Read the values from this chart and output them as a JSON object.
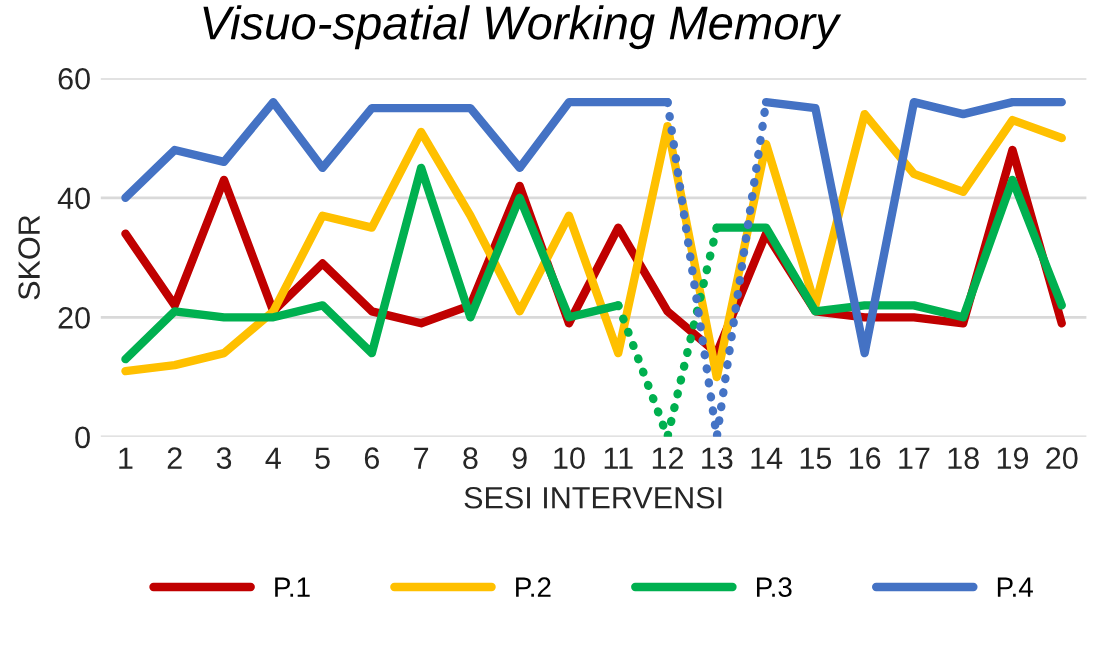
{
  "chart_data": {
    "type": "line",
    "title": "Visuo-spatial Working Memory",
    "xlabel": "SESI INTERVENSI",
    "ylabel": "SKOR",
    "categories": [
      "1",
      "2",
      "3",
      "4",
      "5",
      "6",
      "7",
      "8",
      "9",
      "10",
      "11",
      "12",
      "13",
      "14",
      "15",
      "16",
      "17",
      "18",
      "19",
      "20"
    ],
    "ylim": [
      0,
      60
    ],
    "yticks": [
      0,
      20,
      40,
      60
    ],
    "grid": "y",
    "legend": "bottom",
    "marker": "none",
    "series": [
      {
        "name": "P.1",
        "color": "#c00000",
        "values": [
          34,
          22,
          43,
          21,
          29,
          21,
          19,
          22,
          42,
          19,
          35,
          21,
          14,
          34,
          21,
          20,
          20,
          19,
          48,
          19
        ]
      },
      {
        "name": "P.2",
        "color": "#ffc000",
        "values": [
          11,
          12,
          14,
          21,
          37,
          35,
          51,
          37,
          21,
          37,
          14,
          52,
          10,
          49,
          22,
          54,
          44,
          41,
          53,
          50
        ]
      },
      {
        "name": "P.3",
        "color": "#00b050",
        "values": [
          13,
          21,
          20,
          20,
          22,
          14,
          45,
          20,
          40,
          20,
          22,
          null,
          35,
          35,
          21,
          22,
          22,
          20,
          43,
          22
        ]
      },
      {
        "name": "P.4",
        "color": "#4472c4",
        "values": [
          40,
          48,
          46,
          56,
          45,
          55,
          55,
          55,
          45,
          56,
          56,
          56,
          null,
          56,
          55,
          14,
          56,
          54,
          56,
          56
        ]
      },
      {
        "color": "#00b04f",
        "line_style": "dotted",
        "values": [
          null,
          null,
          null,
          null,
          null,
          null,
          null,
          null,
          null,
          null,
          22,
          0,
          35,
          null,
          null,
          null,
          null,
          null,
          null,
          null
        ]
      },
      {
        "color": "#4473c5",
        "line_style": "dotted",
        "values": [
          null,
          null,
          null,
          null,
          null,
          null,
          null,
          null,
          null,
          null,
          null,
          56,
          0,
          56,
          null,
          null,
          null,
          null,
          null,
          null
        ]
      }
    ]
  }
}
